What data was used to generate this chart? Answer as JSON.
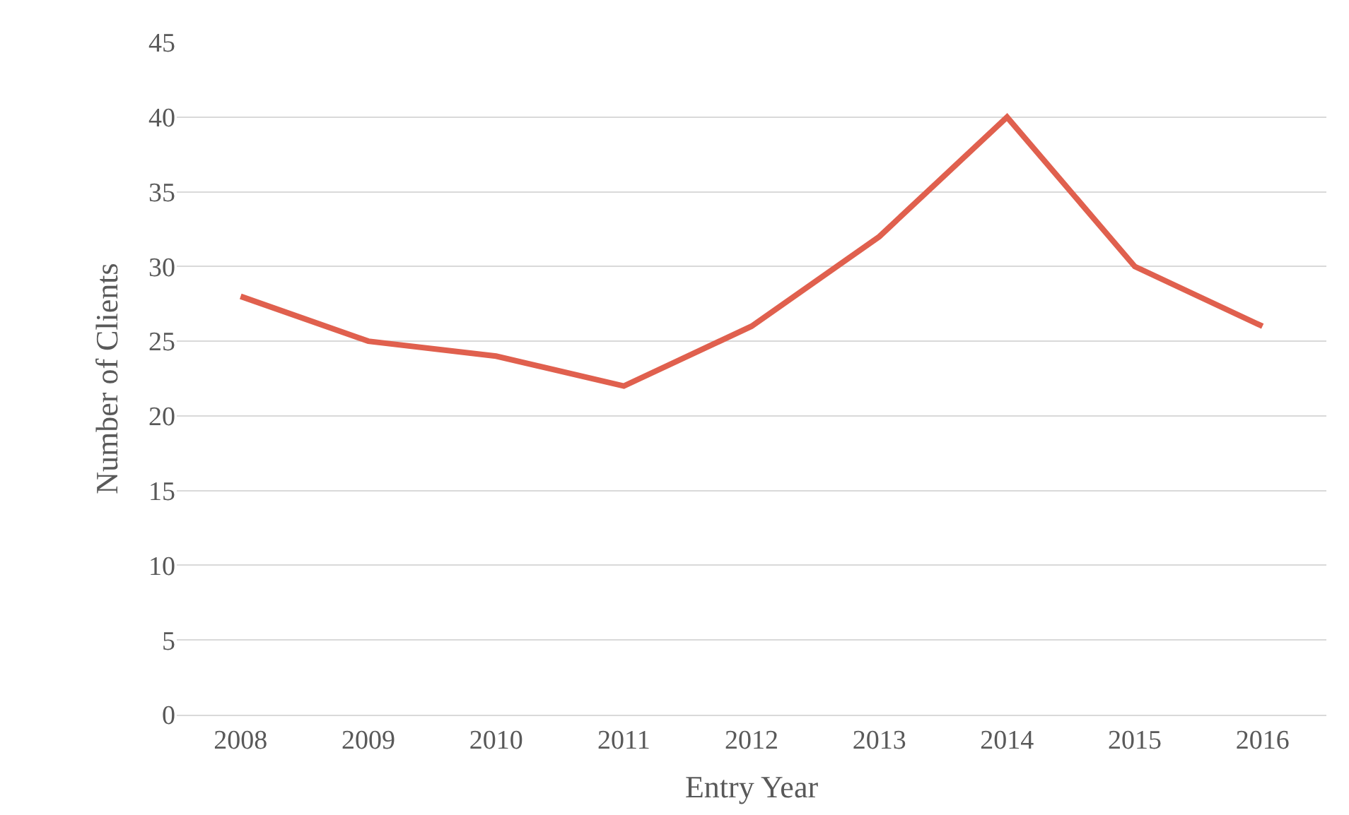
{
  "chart_data": {
    "type": "line",
    "xlabel": "Entry Year",
    "ylabel": "Number of Clients",
    "categories": [
      "2008",
      "2009",
      "2010",
      "2011",
      "2012",
      "2013",
      "2014",
      "2015",
      "2016"
    ],
    "series": [
      {
        "color": "#e0604e",
        "values": [
          28,
          25,
          24,
          22,
          26,
          32,
          40,
          30,
          26
        ]
      }
    ],
    "ylim": [
      0,
      45
    ],
    "yticks": [
      0,
      5,
      10,
      15,
      20,
      25,
      30,
      35,
      40,
      45
    ],
    "grid": "y",
    "marker": "none",
    "line_style": "solid"
  }
}
